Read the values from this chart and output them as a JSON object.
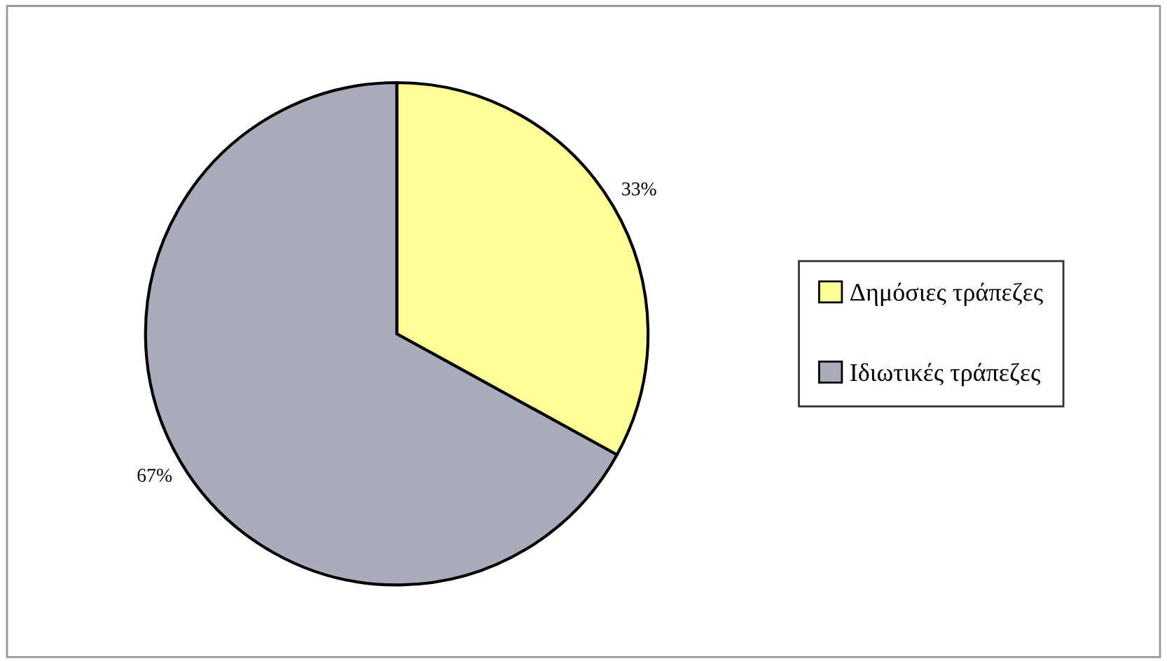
{
  "chart_data": {
    "type": "pie",
    "categories": [
      "Δημόσιες τράπεζες",
      "Ιδιωτικές τράπεζες"
    ],
    "values": [
      33,
      67
    ],
    "value_labels": [
      "33%",
      "67%"
    ],
    "colors": [
      "#ffff99",
      "#a9abbb"
    ],
    "legend": "right"
  }
}
